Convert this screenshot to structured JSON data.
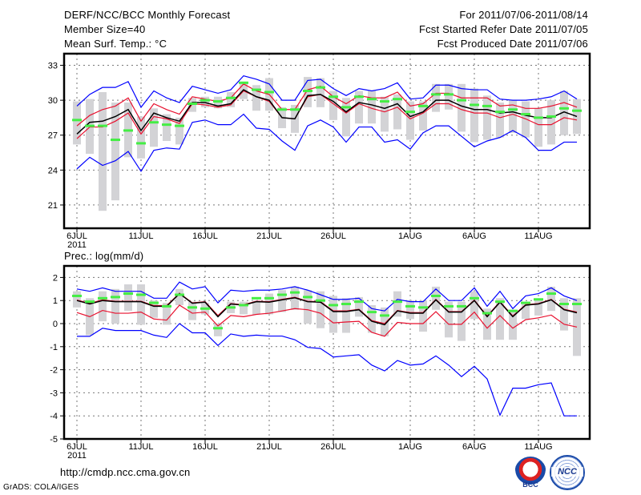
{
  "header": {
    "title": "DERF/NCC/BCC Monthly Forecast",
    "member_size": "Member Size=40",
    "variable": "Mean Surf. Temp.: °C",
    "period": "For 2011/07/06-2011/08/14",
    "started": "Fcst Started Refer Date 2011/07/05",
    "produced": "Fcst Produced Date 2011/07/06"
  },
  "footer": {
    "url": "http://cmdp.ncc.cma.gov.cn",
    "credit": "GrADS: COLA/IGES",
    "logo_left": "BCC",
    "logo_right": "NCC"
  },
  "colors": {
    "mean": "#000000",
    "spread": "#e8102e",
    "extreme": "#0000ff",
    "obs": "#44ee44",
    "range": "#d3d3d6"
  },
  "chart_data": [
    {
      "type": "line",
      "title": "Mean Surf. Temp.: °C",
      "x_tick_labels": [
        "6JUL",
        "11JUL",
        "16JUL",
        "21JUL",
        "26JUL",
        "1AUG",
        "6AUG",
        "11AUG"
      ],
      "x_tick_days": [
        0,
        5,
        10,
        15,
        20,
        26,
        31,
        36
      ],
      "x_year_label": "2011",
      "xlim": [
        -1,
        40
      ],
      "ylim": [
        19,
        34
      ],
      "y_ticks": [
        21,
        24,
        27,
        30,
        33
      ],
      "grid": true,
      "series": [
        {
          "name": "ensemble mean",
          "role": "mean",
          "values": [
            27.1,
            28.1,
            28.2,
            28.6,
            29.2,
            27.4,
            28.9,
            28.5,
            28.2,
            29.8,
            29.8,
            29.5,
            29.7,
            30.9,
            30.3,
            30.0,
            28.5,
            28.4,
            30.4,
            30.5,
            29.9,
            29.0,
            29.8,
            29.6,
            29.3,
            29.7,
            28.6,
            29.0,
            30.0,
            30.0,
            29.5,
            29.2,
            29.2,
            28.9,
            29.0,
            28.7,
            28.5,
            28.5,
            29.0,
            28.6
          ]
        },
        {
          "name": "upper spread",
          "role": "spread",
          "values": [
            27.8,
            28.7,
            29.2,
            29.5,
            30.2,
            28.2,
            29.7,
            29.2,
            28.8,
            30.3,
            30.1,
            29.9,
            30.2,
            31.4,
            30.8,
            30.5,
            29.2,
            29.2,
            30.9,
            31.2,
            30.3,
            29.7,
            30.4,
            30.2,
            30.2,
            30.7,
            29.5,
            29.7,
            30.6,
            30.6,
            30.2,
            30.2,
            30.2,
            29.5,
            29.6,
            29.3,
            29.3,
            29.5,
            29.8,
            29.4
          ]
        },
        {
          "name": "lower spread",
          "role": "spread",
          "values": [
            26.7,
            27.7,
            27.7,
            28.2,
            28.9,
            27.1,
            28.6,
            28.4,
            28.0,
            29.7,
            29.6,
            29.4,
            29.6,
            30.8,
            30.3,
            29.9,
            28.5,
            28.4,
            30.3,
            30.5,
            29.7,
            28.9,
            29.7,
            29.3,
            29.0,
            29.4,
            28.4,
            28.9,
            29.7,
            29.7,
            29.2,
            28.9,
            28.9,
            28.5,
            28.8,
            28.4,
            27.9,
            27.9,
            28.5,
            28.3
          ]
        },
        {
          "name": "ensemble max",
          "role": "extreme",
          "values": [
            29.5,
            30.5,
            31.1,
            31.1,
            31.6,
            29.4,
            30.8,
            30.2,
            29.8,
            31.2,
            30.9,
            30.6,
            30.9,
            32.1,
            31.8,
            31.4,
            30.0,
            30.0,
            31.7,
            31.8,
            31.0,
            30.4,
            31.0,
            30.8,
            31.0,
            31.5,
            30.1,
            30.2,
            31.3,
            31.3,
            31.0,
            30.9,
            30.9,
            30.1,
            30.0,
            30.0,
            30.1,
            30.3,
            30.8,
            30.1
          ]
        },
        {
          "name": "ensemble min",
          "role": "extreme",
          "values": [
            24.1,
            25.1,
            24.4,
            24.8,
            25.6,
            23.9,
            25.7,
            25.9,
            25.8,
            28.1,
            28.3,
            27.9,
            27.9,
            28.8,
            27.6,
            27.5,
            26.5,
            25.7,
            27.8,
            28.3,
            27.7,
            26.4,
            27.7,
            27.7,
            26.4,
            26.6,
            25.8,
            27.2,
            27.8,
            27.8,
            26.9,
            26.0,
            26.5,
            26.8,
            27.4,
            26.8,
            25.7,
            25.7,
            26.4,
            26.4
          ]
        },
        {
          "name": "observed",
          "role": "obs",
          "values": [
            28.3,
            27.8,
            27.8,
            26.6,
            27.4,
            26.3,
            28.1,
            27.9,
            27.8,
            29.7,
            30.0,
            29.9,
            30.2,
            31.5,
            30.9,
            30.7,
            29.2,
            29.2,
            30.8,
            31.1,
            30.3,
            29.4,
            30.3,
            30.1,
            29.9,
            30.1,
            29.0,
            29.5,
            30.5,
            30.5,
            30.0,
            29.6,
            29.5,
            29.0,
            29.2,
            28.8,
            28.5,
            28.6,
            29.3,
            29.1
          ]
        }
      ],
      "range_high": [
        29.9,
        30.1,
        30.7,
        29.8,
        29.8,
        28.6,
        29.3,
        28.8,
        28.5,
        30.2,
        30.3,
        30.3,
        30.7,
        31.6,
        31.3,
        31.9,
        29.4,
        29.6,
        32.0,
        31.9,
        30.8,
        30.2,
        30.8,
        30.8,
        30.3,
        30.5,
        29.9,
        29.9,
        31.4,
        31.4,
        31.4,
        31.0,
        30.4,
        29.8,
        30.0,
        29.9,
        29.3,
        30.0,
        30.8,
        30.1
      ],
      "range_low": [
        26.2,
        25.4,
        20.5,
        21.4,
        25.1,
        25.0,
        26.0,
        26.5,
        26.2,
        29.0,
        29.4,
        29.3,
        29.4,
        30.1,
        29.1,
        29.1,
        27.6,
        27.2,
        29.4,
        29.4,
        28.3,
        26.9,
        28.0,
        28.0,
        27.3,
        27.5,
        26.6,
        27.4,
        29.0,
        29.2,
        27.3,
        26.4,
        26.6,
        26.8,
        27.2,
        26.8,
        26.0,
        26.2,
        27.0,
        27.1
      ]
    },
    {
      "type": "line",
      "title": "Prec.: log(mm/d)",
      "x_tick_labels": [
        "6JUL",
        "11JUL",
        "16JUL",
        "21JUL",
        "26JUL",
        "1AUG",
        "6AUG",
        "11AUG"
      ],
      "x_tick_days": [
        0,
        5,
        10,
        15,
        20,
        26,
        31,
        36
      ],
      "x_year_label": "2011",
      "xlim": [
        -1,
        40
      ],
      "ylim": [
        -5,
        2.5
      ],
      "y_ticks": [
        -5,
        -4,
        -3,
        -2,
        -1,
        0,
        1,
        2
      ],
      "grid": true,
      "series": [
        {
          "name": "ensemble mean",
          "role": "mean",
          "values": [
            1.0,
            0.85,
            1.0,
            0.95,
            0.95,
            0.95,
            0.75,
            0.75,
            1.3,
            0.88,
            0.93,
            0.3,
            0.85,
            0.8,
            0.95,
            0.93,
            1.03,
            1.12,
            0.95,
            0.93,
            0.52,
            0.52,
            0.6,
            0.1,
            -0.05,
            0.55,
            0.45,
            0.45,
            1.03,
            0.5,
            0.5,
            1.0,
            0.3,
            0.93,
            0.3,
            0.8,
            0.85,
            1.03,
            0.6,
            0.47
          ]
        },
        {
          "name": "upper spread",
          "role": "spread",
          "values": [
            1.02,
            0.88,
            1.03,
            0.97,
            0.97,
            0.97,
            0.78,
            0.78,
            1.32,
            0.9,
            0.95,
            0.35,
            0.87,
            0.82,
            0.97,
            0.95,
            1.05,
            1.14,
            0.97,
            0.95,
            0.55,
            0.55,
            0.62,
            0.13,
            0.0,
            0.57,
            0.48,
            0.48,
            1.05,
            0.52,
            0.52,
            1.02,
            0.33,
            0.95,
            0.33,
            0.82,
            0.87,
            1.05,
            0.62,
            0.5
          ]
        },
        {
          "name": "lower spread",
          "role": "spread",
          "values": [
            0.48,
            0.3,
            0.57,
            0.45,
            0.45,
            0.5,
            0.2,
            0.15,
            0.8,
            0.45,
            0.5,
            -0.1,
            0.35,
            0.3,
            0.4,
            0.45,
            0.55,
            0.65,
            0.6,
            0.45,
            0.03,
            0.07,
            0.1,
            -0.38,
            -0.55,
            0.05,
            0.0,
            0.0,
            0.52,
            -0.03,
            -0.03,
            0.5,
            -0.2,
            0.35,
            -0.2,
            0.17,
            0.25,
            0.37,
            -0.03,
            -0.15
          ]
        },
        {
          "name": "ensemble max",
          "role": "extreme",
          "values": [
            1.5,
            1.4,
            1.55,
            1.4,
            1.4,
            1.4,
            1.1,
            1.1,
            1.8,
            1.5,
            1.6,
            0.9,
            1.45,
            1.4,
            1.45,
            1.45,
            1.5,
            1.6,
            1.45,
            1.25,
            1.05,
            1.05,
            1.1,
            0.65,
            0.55,
            1.05,
            0.95,
            0.95,
            1.5,
            1.0,
            1.0,
            1.55,
            0.75,
            1.4,
            0.65,
            1.2,
            1.3,
            1.55,
            1.2,
            1.0
          ]
        },
        {
          "name": "ensemble min",
          "role": "extreme",
          "values": [
            -0.55,
            -0.55,
            -0.2,
            -0.3,
            -0.3,
            -0.3,
            -0.5,
            -0.6,
            0.0,
            -0.4,
            -0.4,
            -0.95,
            -0.45,
            -0.55,
            -0.5,
            -0.54,
            -0.54,
            -0.7,
            -1.03,
            -1.08,
            -1.45,
            -1.4,
            -1.35,
            -1.8,
            -2.05,
            -1.6,
            -1.8,
            -1.75,
            -1.4,
            -1.8,
            -2.3,
            -1.85,
            -2.4,
            -3.97,
            -2.8,
            -2.8,
            -2.65,
            -2.57,
            -4.0,
            -4.0
          ]
        },
        {
          "name": "observed",
          "role": "obs",
          "values": [
            1.2,
            0.95,
            1.1,
            1.15,
            1.3,
            1.25,
            0.9,
            0.75,
            1.25,
            0.7,
            0.65,
            -0.2,
            0.7,
            0.8,
            1.1,
            1.1,
            1.25,
            1.35,
            1.15,
            1.0,
            0.8,
            0.85,
            0.95,
            0.5,
            0.35,
            0.95,
            0.75,
            0.7,
            1.2,
            0.75,
            0.75,
            1.1,
            0.45,
            0.95,
            0.55,
            0.9,
            1.05,
            1.3,
            0.85,
            0.85
          ]
        }
      ],
      "range_high": [
        1.4,
        1.1,
        1.4,
        1.5,
        1.7,
        1.7,
        1.0,
        0.9,
        1.5,
        0.95,
        0.9,
        0.0,
        0.95,
        0.95,
        1.0,
        1.3,
        1.45,
        1.6,
        1.45,
        1.4,
        1.2,
        1.1,
        1.15,
        0.8,
        0.7,
        1.4,
        1.0,
        1.0,
        1.6,
        0.95,
        0.95,
        1.4,
        0.65,
        1.1,
        0.6,
        0.9,
        1.05,
        1.6,
        1.1,
        1.1
      ],
      "range_low": [
        0.7,
        -0.5,
        0.1,
        0.0,
        0.55,
        -0.05,
        0.25,
        -0.05,
        0.8,
        0.15,
        0.4,
        -0.55,
        0.45,
        0.4,
        0.4,
        0.4,
        0.5,
        0.6,
        0.0,
        -0.2,
        -0.4,
        -0.4,
        0.3,
        -0.4,
        -0.55,
        0.3,
        0.2,
        -0.35,
        0.6,
        -0.6,
        -0.75,
        0.2,
        -0.7,
        -0.7,
        -0.7,
        0.2,
        0.35,
        0.55,
        -0.3,
        -1.4
      ]
    }
  ]
}
